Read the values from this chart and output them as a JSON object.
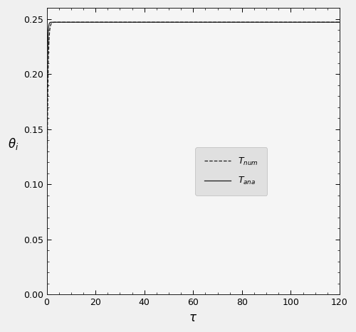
{
  "xlabel": "τ",
  "ylabel": "θ_i",
  "xlim": [
    0,
    120
  ],
  "ylim": [
    0.0,
    0.26
  ],
  "yticks": [
    0.0,
    0.05,
    0.1,
    0.15,
    0.2,
    0.25
  ],
  "xticks": [
    0,
    20,
    40,
    60,
    80,
    100,
    120
  ],
  "background_color": "#f5f5f5",
  "line_color": "#1a1a1a",
  "C_ss": 0.247,
  "lambda_ana": 5.0,
  "lambda_num": 2.8,
  "tau_max": 120,
  "n_points": 5000,
  "legend_facecolor": "#e0e0e0",
  "legend_edgecolor": "#bbbbbb"
}
